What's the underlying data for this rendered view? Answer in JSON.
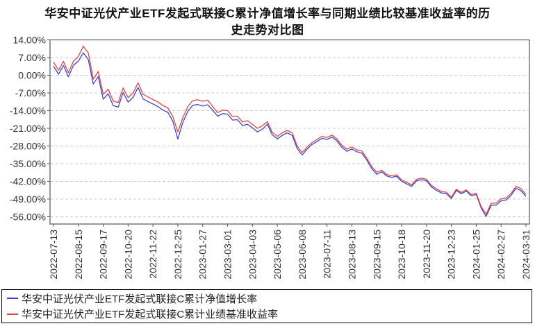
{
  "title": {
    "line1": "华安中证光伏产业ETF发起式联接C累计净值增长率与同期业绩比较基准收益率的历",
    "line2": "史走势对比图"
  },
  "colors": {
    "fund_line": "#3d45c8",
    "benchmark_line": "#e04545",
    "grid": "#c9c9c9",
    "frame": "#555555",
    "tick_text": "#333333",
    "legend_border": "#000000"
  },
  "chart_data": {
    "type": "line",
    "title": "华安中证光伏产业ETF发起式联接C累计净值增长率与同期业绩比较基准收益率的历史走势对比图",
    "grid": "horizontal-dashed",
    "legend_position": "bottom",
    "y_axis": {
      "unit": "%",
      "tick_values": [
        14,
        7,
        0,
        -7,
        -14,
        -21,
        -28,
        -35,
        -42,
        -49,
        -56
      ],
      "tick_labels": [
        "14.00%",
        "7.00%",
        "0.00%",
        "-7.00%",
        "-14.00%",
        "-21.00%",
        "-28.00%",
        "-35.00%",
        "-42.00%",
        "-49.00%",
        "-56.00%"
      ],
      "plot_top_value": 14,
      "plot_bottom_value": -58.9
    },
    "x_axis": {
      "tick_labels": [
        "2022-07-13",
        "2022-08-15",
        "2022-09-17",
        "2022-10-20",
        "2022-11-22",
        "2022-12-25",
        "2023-01-27",
        "2023-03-01",
        "2023-04-03",
        "2023-05-06",
        "2023-06-08",
        "2023-07-11",
        "2023-08-13",
        "2023-09-15",
        "2023-10-18",
        "2023-11-20",
        "2023-12-23",
        "2024-01-25",
        "2024-02-27",
        "2024-03-31"
      ]
    },
    "series": [
      {
        "name": "华安中证光伏产业ETF发起式联接C累计净值增长率",
        "color": "#3d45c8",
        "values": [
          3.6,
          0.4,
          3.9,
          -0.6,
          3.9,
          5.6,
          8.9,
          6.2,
          -3.5,
          -0.5,
          -9.5,
          -7.3,
          -12.0,
          -12.6,
          -6.8,
          -10.6,
          -8.8,
          -4.8,
          -9.3,
          -10.4,
          -11.4,
          -12.4,
          -13.8,
          -14.7,
          -18.2,
          -25.2,
          -18.7,
          -14.3,
          -11.9,
          -11.6,
          -12.2,
          -11.7,
          -13.8,
          -16.2,
          -15.2,
          -15.4,
          -17.7,
          -17.6,
          -19.9,
          -19.4,
          -20.8,
          -22.4,
          -21.4,
          -19.4,
          -23.6,
          -25.2,
          -23.8,
          -22.8,
          -23.8,
          -29.0,
          -31.6,
          -29.2,
          -27.4,
          -26.2,
          -25.0,
          -25.4,
          -24.5,
          -26.0,
          -28.6,
          -30.1,
          -29.2,
          -30.3,
          -30.8,
          -33.6,
          -37.0,
          -39.2,
          -38.2,
          -39.9,
          -40.4,
          -40.0,
          -42.0,
          -43.0,
          -44.0,
          -41.8,
          -41.3,
          -41.8,
          -44.2,
          -45.6,
          -46.6,
          -46.9,
          -48.8,
          -45.6,
          -46.9,
          -45.9,
          -47.7,
          -47.2,
          -52.6,
          -55.9,
          -51.5,
          -51.4,
          -49.7,
          -49.4,
          -47.6,
          -44.7,
          -45.7,
          -48.0
        ]
      },
      {
        "name": "华安中证光伏产业ETF发起式联接C累计业绩基准收益率",
        "color": "#e04545",
        "values": [
          5.2,
          2.0,
          5.5,
          1.0,
          5.5,
          7.5,
          11.5,
          8.8,
          -1.5,
          1.5,
          -7.5,
          -5.5,
          -10.2,
          -10.8,
          -5.0,
          -8.8,
          -7.0,
          -3.0,
          -7.5,
          -8.6,
          -9.6,
          -10.6,
          -12.0,
          -12.9,
          -16.4,
          -22.4,
          -16.8,
          -12.4,
          -10.0,
          -9.7,
          -10.3,
          -9.8,
          -12.4,
          -14.8,
          -13.8,
          -14.0,
          -16.3,
          -16.2,
          -18.5,
          -18.0,
          -19.4,
          -21.0,
          -20.0,
          -18.4,
          -22.6,
          -24.2,
          -22.8,
          -21.8,
          -22.8,
          -28.0,
          -30.6,
          -28.4,
          -26.6,
          -25.4,
          -24.2,
          -24.6,
          -23.7,
          -25.2,
          -27.8,
          -29.3,
          -28.4,
          -29.5,
          -30.0,
          -32.8,
          -36.2,
          -38.4,
          -37.6,
          -39.3,
          -39.8,
          -39.4,
          -41.4,
          -42.4,
          -43.4,
          -41.2,
          -40.7,
          -41.2,
          -43.6,
          -45.0,
          -46.0,
          -46.3,
          -48.3,
          -45.1,
          -46.4,
          -45.4,
          -47.2,
          -46.7,
          -52.0,
          -55.0,
          -50.7,
          -50.6,
          -48.9,
          -48.6,
          -46.8,
          -43.9,
          -44.9,
          -47.2
        ]
      }
    ]
  },
  "legend": {
    "items": [
      {
        "label": "华安中证光伏产业ETF发起式联接C累计净值增长率",
        "color": "#3d45c8"
      },
      {
        "label": "华安中证光伏产业ETF发起式联接C累计业绩基准收益率",
        "color": "#e04545"
      }
    ]
  }
}
